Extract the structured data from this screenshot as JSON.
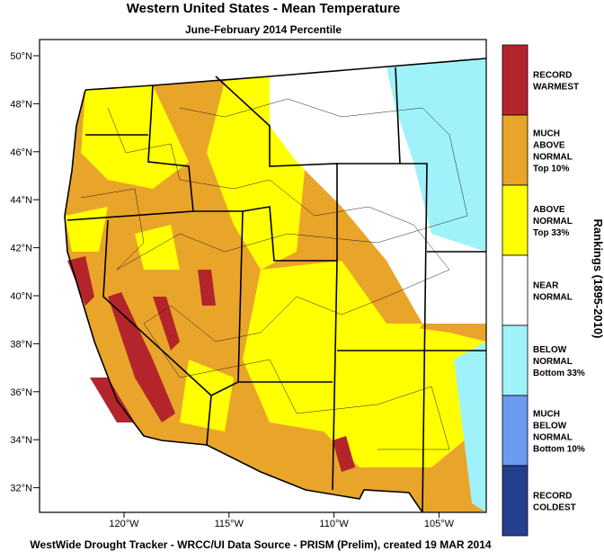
{
  "header": {
    "title": "Western United States - Mean Temperature",
    "subtitle": "June-February 2014 Percentile"
  },
  "map": {
    "lat_labels": [
      "50°N",
      "48°N",
      "46°N",
      "44°N",
      "42°N",
      "40°N",
      "38°N",
      "36°N",
      "34°N",
      "32°N"
    ],
    "lon_labels": [
      "120°W",
      "115°W",
      "110°W",
      "105°W"
    ]
  },
  "legend": {
    "title": "Rankings (1895-2010)",
    "items": [
      {
        "color": "#b3252b",
        "lines": [
          "RECORD",
          "WARMEST"
        ]
      },
      {
        "color": "#e9a42a",
        "lines": [
          "MUCH",
          "ABOVE",
          "NORMAL",
          "Top 10%"
        ]
      },
      {
        "color": "#ffff00",
        "lines": [
          "ABOVE",
          "NORMAL",
          "Top 33%"
        ]
      },
      {
        "color": "#ffffff",
        "lines": [
          "NEAR",
          "NORMAL"
        ]
      },
      {
        "color": "#9ff2f9",
        "lines": [
          "BELOW",
          "NORMAL",
          "Bottom 33%"
        ]
      },
      {
        "color": "#6c9aef",
        "lines": [
          "MUCH",
          "BELOW",
          "NORMAL",
          "Bottom 10%"
        ]
      },
      {
        "color": "#263e8e",
        "lines": [
          "RECORD",
          "COLDEST"
        ]
      }
    ]
  },
  "footer": "WestWide Drought Tracker - WRCC/UI  Data Source - PRISM (Prelim), created 19 MAR 2014"
}
